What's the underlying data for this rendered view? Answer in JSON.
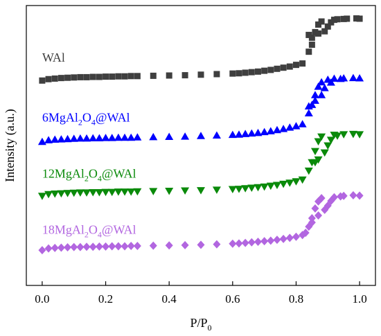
{
  "chart_data": {
    "type": "scatter",
    "xlabel": "P/P",
    "xlabel_sub": "0",
    "ylabel": "Intensity (a.u.)",
    "xlim": [
      -0.05,
      1.05
    ],
    "xticks": [
      "0.0",
      "0.2",
      "0.4",
      "0.6",
      "0.8",
      "1.0"
    ],
    "xtick_values": [
      0.0,
      0.2,
      0.4,
      0.6,
      0.8,
      1.0
    ],
    "yticks_shown": false,
    "grid": false,
    "ylim": [
      0,
      100
    ],
    "series": [
      {
        "label_parts": [
          "WAl"
        ],
        "marker": "square",
        "color": "#3f3f3f",
        "label_at": [
          0.0,
          80
        ],
        "points": [
          [
            0.0,
            73.2
          ],
          [
            0.02,
            73.7
          ],
          [
            0.04,
            73.9
          ],
          [
            0.06,
            74.1
          ],
          [
            0.08,
            74.2
          ],
          [
            0.1,
            74.3
          ],
          [
            0.12,
            74.4
          ],
          [
            0.14,
            74.4
          ],
          [
            0.16,
            74.5
          ],
          [
            0.18,
            74.5
          ],
          [
            0.2,
            74.6
          ],
          [
            0.22,
            74.6
          ],
          [
            0.24,
            74.7
          ],
          [
            0.26,
            74.7
          ],
          [
            0.28,
            74.8
          ],
          [
            0.3,
            74.8
          ],
          [
            0.35,
            74.9
          ],
          [
            0.4,
            75.0
          ],
          [
            0.45,
            75.1
          ],
          [
            0.5,
            75.3
          ],
          [
            0.55,
            75.5
          ],
          [
            0.6,
            75.7
          ],
          [
            0.62,
            75.8
          ],
          [
            0.64,
            76.0
          ],
          [
            0.66,
            76.2
          ],
          [
            0.68,
            76.4
          ],
          [
            0.7,
            76.7
          ],
          [
            0.72,
            77.0
          ],
          [
            0.74,
            77.4
          ],
          [
            0.76,
            77.8
          ],
          [
            0.78,
            78.2
          ],
          [
            0.8,
            78.8
          ],
          [
            0.82,
            79.3
          ],
          [
            0.84,
            83.5
          ],
          [
            0.85,
            86.0
          ],
          [
            0.86,
            90.5
          ],
          [
            0.87,
            93.2
          ],
          [
            0.88,
            94.3
          ],
          [
            0.9,
            92.5
          ],
          [
            0.91,
            94.0
          ],
          [
            0.93,
            95.1
          ],
          [
            0.96,
            95.3
          ],
          [
            0.99,
            95.4
          ],
          [
            1.0,
            95.3
          ],
          [
            0.95,
            95.2
          ],
          [
            0.92,
            94.9
          ],
          [
            0.89,
            90.8
          ],
          [
            0.87,
            90.0
          ],
          [
            0.85,
            88.5
          ],
          [
            0.84,
            89.5
          ]
        ]
      },
      {
        "label_parts": [
          "6MgAl",
          "2",
          "O",
          "4",
          "@WAl"
        ],
        "marker": "triangle-up",
        "color": "#0000ff",
        "label_at": [
          0.0,
          58.5
        ],
        "points": [
          [
            0.0,
            51.3
          ],
          [
            0.02,
            51.9
          ],
          [
            0.04,
            52.1
          ],
          [
            0.06,
            52.2
          ],
          [
            0.08,
            52.3
          ],
          [
            0.1,
            52.4
          ],
          [
            0.12,
            52.5
          ],
          [
            0.14,
            52.5
          ],
          [
            0.16,
            52.6
          ],
          [
            0.18,
            52.6
          ],
          [
            0.2,
            52.7
          ],
          [
            0.22,
            52.7
          ],
          [
            0.24,
            52.8
          ],
          [
            0.26,
            52.8
          ],
          [
            0.28,
            52.8
          ],
          [
            0.3,
            52.9
          ],
          [
            0.35,
            53.0
          ],
          [
            0.4,
            53.1
          ],
          [
            0.45,
            53.2
          ],
          [
            0.5,
            53.4
          ],
          [
            0.55,
            53.6
          ],
          [
            0.6,
            53.8
          ],
          [
            0.62,
            53.9
          ],
          [
            0.64,
            54.1
          ],
          [
            0.66,
            54.3
          ],
          [
            0.68,
            54.5
          ],
          [
            0.7,
            54.8
          ],
          [
            0.72,
            55.1
          ],
          [
            0.74,
            55.5
          ],
          [
            0.76,
            55.9
          ],
          [
            0.78,
            56.4
          ],
          [
            0.8,
            56.9
          ],
          [
            0.82,
            57.6
          ],
          [
            0.84,
            61.5
          ],
          [
            0.85,
            64.5
          ],
          [
            0.86,
            68.0
          ],
          [
            0.87,
            71.0
          ],
          [
            0.88,
            72.6
          ],
          [
            0.89,
            70.5
          ],
          [
            0.9,
            73.5
          ],
          [
            0.92,
            73.9
          ],
          [
            0.95,
            74.0
          ],
          [
            0.98,
            74.1
          ],
          [
            1.0,
            74.0
          ],
          [
            0.94,
            73.8
          ],
          [
            0.91,
            72.5
          ],
          [
            0.88,
            68.0
          ],
          [
            0.86,
            66.0
          ],
          [
            0.84,
            64.0
          ]
        ]
      },
      {
        "label_parts": [
          "12MgAl",
          "2",
          "O",
          "4",
          "@WAl"
        ],
        "marker": "triangle-down",
        "color": "#0a8a0a",
        "label_at": [
          0.0,
          38.5
        ],
        "points": [
          [
            0.0,
            32.0
          ],
          [
            0.02,
            32.6
          ],
          [
            0.04,
            32.8
          ],
          [
            0.06,
            32.9
          ],
          [
            0.08,
            33.0
          ],
          [
            0.1,
            33.1
          ],
          [
            0.12,
            33.2
          ],
          [
            0.14,
            33.2
          ],
          [
            0.16,
            33.3
          ],
          [
            0.18,
            33.3
          ],
          [
            0.2,
            33.4
          ],
          [
            0.22,
            33.4
          ],
          [
            0.24,
            33.5
          ],
          [
            0.26,
            33.5
          ],
          [
            0.28,
            33.5
          ],
          [
            0.3,
            33.6
          ],
          [
            0.35,
            33.7
          ],
          [
            0.4,
            33.8
          ],
          [
            0.45,
            33.9
          ],
          [
            0.5,
            34.0
          ],
          [
            0.55,
            34.2
          ],
          [
            0.6,
            34.4
          ],
          [
            0.62,
            34.5
          ],
          [
            0.64,
            34.7
          ],
          [
            0.66,
            34.9
          ],
          [
            0.68,
            35.1
          ],
          [
            0.7,
            35.3
          ],
          [
            0.72,
            35.6
          ],
          [
            0.74,
            35.9
          ],
          [
            0.76,
            36.3
          ],
          [
            0.78,
            36.7
          ],
          [
            0.8,
            37.2
          ],
          [
            0.82,
            37.8
          ],
          [
            0.84,
            41.0
          ],
          [
            0.85,
            44.0
          ],
          [
            0.86,
            48.0
          ],
          [
            0.87,
            51.5
          ],
          [
            0.88,
            53.2
          ],
          [
            0.9,
            50.0
          ],
          [
            0.92,
            53.8
          ],
          [
            0.95,
            54.0
          ],
          [
            0.98,
            54.1
          ],
          [
            1.0,
            54.0
          ],
          [
            0.93,
            53.5
          ],
          [
            0.91,
            52.0
          ],
          [
            0.89,
            47.5
          ],
          [
            0.87,
            45.0
          ],
          [
            0.86,
            44.0
          ]
        ]
      },
      {
        "label_parts": [
          "18MgAl",
          "2",
          "O",
          "4",
          "@WAl"
        ],
        "marker": "diamond",
        "color": "#b266e0",
        "label_at": [
          0.0,
          18.5
        ],
        "points": [
          [
            0.0,
            12.6
          ],
          [
            0.02,
            13.2
          ],
          [
            0.04,
            13.4
          ],
          [
            0.06,
            13.5
          ],
          [
            0.08,
            13.6
          ],
          [
            0.1,
            13.7
          ],
          [
            0.12,
            13.7
          ],
          [
            0.14,
            13.8
          ],
          [
            0.16,
            13.8
          ],
          [
            0.18,
            13.9
          ],
          [
            0.2,
            13.9
          ],
          [
            0.22,
            14.0
          ],
          [
            0.24,
            14.0
          ],
          [
            0.26,
            14.0
          ],
          [
            0.28,
            14.1
          ],
          [
            0.3,
            14.1
          ],
          [
            0.35,
            14.2
          ],
          [
            0.4,
            14.3
          ],
          [
            0.45,
            14.4
          ],
          [
            0.5,
            14.5
          ],
          [
            0.55,
            14.7
          ],
          [
            0.6,
            14.9
          ],
          [
            0.62,
            15.0
          ],
          [
            0.64,
            15.2
          ],
          [
            0.66,
            15.4
          ],
          [
            0.68,
            15.6
          ],
          [
            0.7,
            15.8
          ],
          [
            0.72,
            16.0
          ],
          [
            0.74,
            16.3
          ],
          [
            0.76,
            16.6
          ],
          [
            0.78,
            17.0
          ],
          [
            0.8,
            17.4
          ],
          [
            0.82,
            18.0
          ],
          [
            0.83,
            18.8
          ],
          [
            0.84,
            21.0
          ],
          [
            0.85,
            24.0
          ],
          [
            0.86,
            27.5
          ],
          [
            0.87,
            30.0
          ],
          [
            0.88,
            31.2
          ],
          [
            0.9,
            28.5
          ],
          [
            0.92,
            31.5
          ],
          [
            0.95,
            32.0
          ],
          [
            0.98,
            32.2
          ],
          [
            1.0,
            32.1
          ],
          [
            0.94,
            31.8
          ],
          [
            0.91,
            30.2
          ],
          [
            0.89,
            27.0
          ],
          [
            0.87,
            25.0
          ],
          [
            0.85,
            22.5
          ]
        ]
      }
    ]
  }
}
